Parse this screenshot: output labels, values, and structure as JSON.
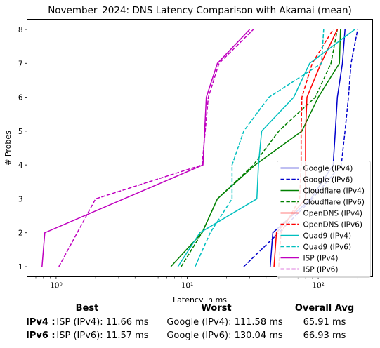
{
  "chart_data": {
    "type": "line",
    "title": "November_2024: DNS Latency Comparison with Akamai (mean)",
    "xlabel": "Latency in ms",
    "ylabel": "# Probes",
    "xscale": "log",
    "xlim": [
      0.6,
      260
    ],
    "ylim": [
      0.7,
      8.3
    ],
    "x_ticks": [
      {
        "value": 1,
        "label": "10⁰"
      },
      {
        "value": 10,
        "label": "10¹"
      },
      {
        "value": 100,
        "label": "10²"
      }
    ],
    "y_ticks": [
      1,
      2,
      3,
      4,
      5,
      6,
      7,
      8
    ],
    "legend_position": "lower-right",
    "grid": false,
    "series": [
      {
        "name": "Google (IPv4)",
        "color": "#0000cc",
        "dash": "solid",
        "points": [
          [
            43,
            1
          ],
          [
            45,
            2
          ],
          [
            88,
            3
          ],
          [
            130,
            4
          ],
          [
            135,
            5
          ],
          [
            140,
            6
          ],
          [
            153,
            7
          ],
          [
            160,
            8
          ]
        ]
      },
      {
        "name": "Google (IPv6)",
        "color": "#0000cc",
        "dash": "dashed",
        "points": [
          [
            27,
            1
          ],
          [
            50,
            2
          ],
          [
            90,
            3
          ],
          [
            150,
            4
          ],
          [
            160,
            5
          ],
          [
            170,
            6
          ],
          [
            178,
            7
          ],
          [
            200,
            8
          ]
        ]
      },
      {
        "name": "Cloudflare (IPv4)",
        "color": "#008000",
        "dash": "solid",
        "points": [
          [
            7.5,
            1
          ],
          [
            13,
            2
          ],
          [
            17,
            3
          ],
          [
            33,
            4
          ],
          [
            75,
            5
          ],
          [
            100,
            6
          ],
          [
            145,
            7
          ],
          [
            148,
            8
          ]
        ]
      },
      {
        "name": "Cloudflare (IPv6)",
        "color": "#008000",
        "dash": "dashed",
        "points": [
          [
            9,
            1
          ],
          [
            13,
            2
          ],
          [
            17,
            3
          ],
          [
            32,
            4
          ],
          [
            50,
            5
          ],
          [
            95,
            6
          ],
          [
            125,
            7
          ],
          [
            140,
            8
          ]
        ]
      },
      {
        "name": "OpenDNS (IPv4)",
        "color": "#ff0000",
        "dash": "solid",
        "points": [
          [
            46,
            1
          ],
          [
            48,
            2
          ],
          [
            80,
            3
          ],
          [
            80,
            4
          ],
          [
            80,
            5
          ],
          [
            82,
            6
          ],
          [
            105,
            7
          ],
          [
            140,
            8
          ]
        ]
      },
      {
        "name": "OpenDNS (IPv6)",
        "color": "#ff0000",
        "dash": "dashed",
        "points": [
          [
            50,
            1
          ],
          [
            52,
            2
          ],
          [
            72,
            3
          ],
          [
            74,
            4
          ],
          [
            74,
            5
          ],
          [
            75,
            6
          ],
          [
            90,
            7
          ],
          [
            130,
            8
          ]
        ]
      },
      {
        "name": "Quad9 (IPv4)",
        "color": "#00bfbf",
        "dash": "solid",
        "points": [
          [
            8.5,
            1
          ],
          [
            12.5,
            2
          ],
          [
            34,
            3
          ],
          [
            35,
            4
          ],
          [
            37,
            5
          ],
          [
            65,
            6
          ],
          [
            86,
            7
          ],
          [
            190,
            8
          ]
        ]
      },
      {
        "name": "Quad9 (IPv6)",
        "color": "#00bfbf",
        "dash": "dashed",
        "points": [
          [
            11.5,
            1
          ],
          [
            15,
            2
          ],
          [
            22,
            3
          ],
          [
            22,
            4
          ],
          [
            27,
            5
          ],
          [
            42,
            6
          ],
          [
            106,
            7
          ],
          [
            110,
            8
          ]
        ]
      },
      {
        "name": "ISP (IPv4)",
        "color": "#bf00bf",
        "dash": "solid",
        "points": [
          [
            0.78,
            1
          ],
          [
            0.82,
            2
          ],
          [
            13.2,
            4
          ],
          [
            14,
            6
          ],
          [
            17,
            7
          ],
          [
            30,
            8
          ]
        ]
      },
      {
        "name": "ISP (IPv6)",
        "color": "#bf00bf",
        "dash": "dashed",
        "points": [
          [
            1.05,
            1
          ],
          [
            2,
            3
          ],
          [
            13,
            4
          ],
          [
            14.5,
            6
          ],
          [
            17.5,
            7
          ],
          [
            32,
            8
          ]
        ]
      }
    ]
  },
  "summary": {
    "headers": {
      "best": "Best",
      "worst": "Worst",
      "avg": "Overall Avg"
    },
    "rows": [
      {
        "label": "IPv4 :",
        "best": "ISP (IPv4): 11.66 ms",
        "worst": "Google (IPv4): 111.58 ms",
        "avg": "65.91 ms"
      },
      {
        "label": "IPv6 :",
        "best": "ISP (IPv6): 11.57 ms",
        "worst": "Google (IPv6): 130.04 ms",
        "avg": "66.93 ms"
      }
    ]
  }
}
